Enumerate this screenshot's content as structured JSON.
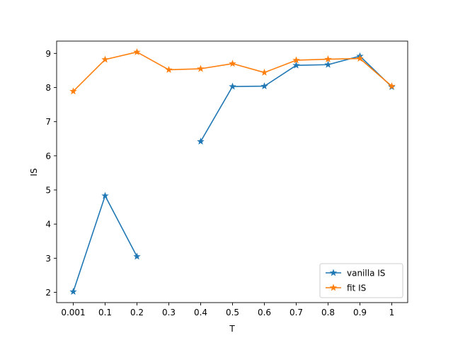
{
  "chart_data": {
    "type": "line",
    "title": "",
    "xlabel": "T",
    "ylabel": "IS",
    "categories": [
      "0.001",
      "0.1",
      "0.2",
      "0.3",
      "0.4",
      "0.5",
      "0.6",
      "0.7",
      "0.8",
      "0.9",
      "1"
    ],
    "y_ticks": [
      2,
      3,
      4,
      5,
      6,
      7,
      8,
      9
    ],
    "ylim": [
      1.7,
      9.36
    ],
    "grid": false,
    "legend_position": "lower-right",
    "marker": "star",
    "series": [
      {
        "name": "vanilla IS",
        "color": "#1f77b4",
        "values": [
          2.02,
          4.83,
          3.05,
          null,
          6.42,
          8.03,
          8.04,
          8.65,
          8.67,
          8.92,
          8.02
        ]
      },
      {
        "name": "fit IS",
        "color": "#ff7f0e",
        "values": [
          7.89,
          8.82,
          9.04,
          8.52,
          8.55,
          8.7,
          8.44,
          8.8,
          8.83,
          8.85,
          8.04
        ]
      }
    ]
  }
}
